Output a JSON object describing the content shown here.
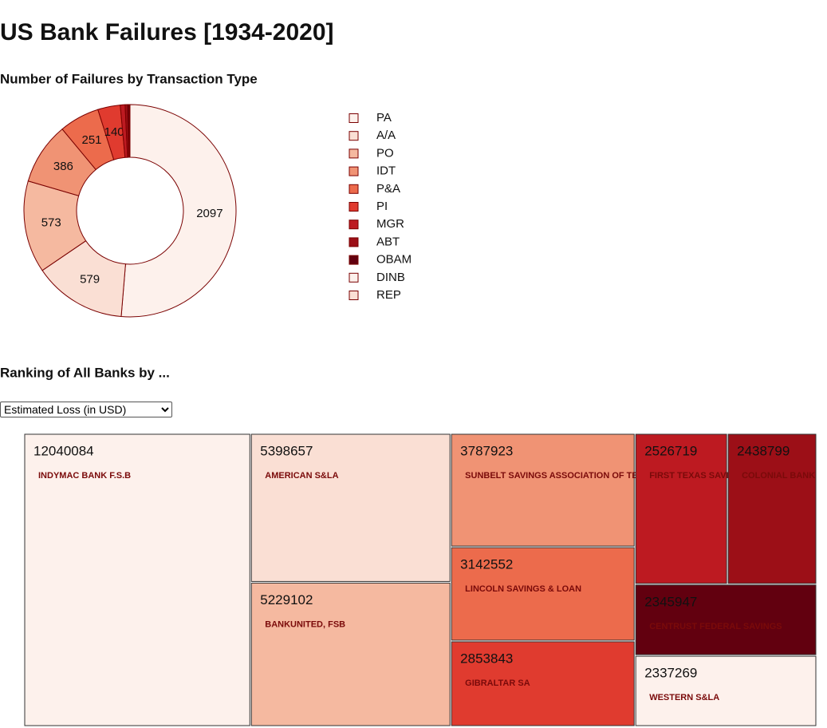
{
  "title": "US Bank Failures [1934-2020]",
  "measure_select": "Estimated Loss (in USD)",
  "chart_data": [
    {
      "type": "pie",
      "title": "Number of Failures by Transaction Type",
      "categories": [
        "PA",
        "A/A",
        "PO",
        "IDT",
        "P&A",
        "PI",
        "MGR",
        "ABT",
        "OBAM",
        "DINB",
        "REP"
      ],
      "values": [
        2097,
        579,
        573,
        386,
        251,
        140,
        30,
        15,
        10,
        3,
        2
      ],
      "colors": [
        "#fdf1ec",
        "#fadfd4",
        "#f5b9a0",
        "#f09374",
        "#ec6b4c",
        "#e03b2f",
        "#bd1a21",
        "#9c0f17",
        "#62000f",
        "#fdf1ec",
        "#fadfd4"
      ]
    },
    {
      "type": "treemap",
      "title": "Ranking of All Banks by ...",
      "categories": [
        "INDYMAC BANK F.S.B",
        "AMERICAN S&LA",
        "BANKUNITED, FSB",
        "SUNBELT SAVINGS ASSOCIATION OF TEXAS",
        "LINCOLN SAVINGS & LOAN",
        "GIBRALTAR SA",
        "FIRST TEXAS SAVINGS ASSN",
        "COLONIAL BANK",
        "CENTRUST FEDERAL SAVINGS",
        "WESTERN S&LA"
      ],
      "values": [
        12040084,
        5398657,
        5229102,
        3787923,
        3142552,
        2853843,
        2526719,
        2438799,
        2345947,
        2337269
      ],
      "colors": [
        "#fdf1ec",
        "#fadfd4",
        "#f5b9a0",
        "#f09374",
        "#ec6b4c",
        "#e03b2f",
        "#bd1a21",
        "#9c0f17",
        "#62000f",
        "#fdf1ec"
      ]
    }
  ]
}
